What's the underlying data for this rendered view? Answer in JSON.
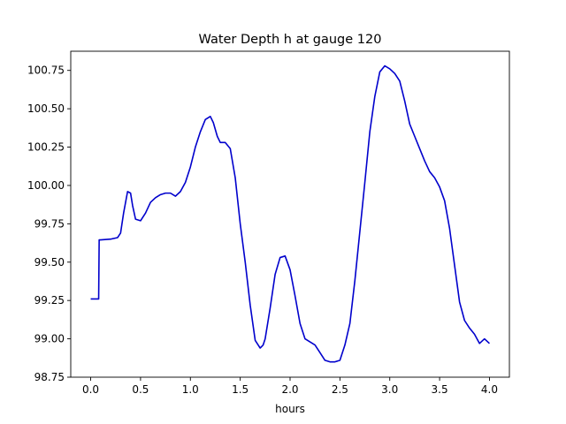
{
  "chart_data": {
    "type": "line",
    "title": "Water Depth h at gauge 120",
    "xlabel": "hours",
    "ylabel": "",
    "xlim": [
      -0.2,
      4.2
    ],
    "ylim": [
      98.75,
      100.875
    ],
    "xticks": [
      {
        "value": 0.0,
        "label": "0.0"
      },
      {
        "value": 0.5,
        "label": "0.5"
      },
      {
        "value": 1.0,
        "label": "1.0"
      },
      {
        "value": 1.5,
        "label": "1.5"
      },
      {
        "value": 2.0,
        "label": "2.0"
      },
      {
        "value": 2.5,
        "label": "2.5"
      },
      {
        "value": 3.0,
        "label": "3.0"
      },
      {
        "value": 3.5,
        "label": "3.5"
      },
      {
        "value": 4.0,
        "label": "4.0"
      }
    ],
    "yticks": [
      {
        "value": 98.75,
        "label": "98.75"
      },
      {
        "value": 99.0,
        "label": "99.00"
      },
      {
        "value": 99.25,
        "label": "99.25"
      },
      {
        "value": 99.5,
        "label": "99.50"
      },
      {
        "value": 99.75,
        "label": "99.75"
      },
      {
        "value": 100.0,
        "label": "100.00"
      },
      {
        "value": 100.25,
        "label": "100.25"
      },
      {
        "value": 100.5,
        "label": "100.50"
      },
      {
        "value": 100.75,
        "label": "100.75"
      }
    ],
    "grid": false,
    "line_color": "#0000cc",
    "series": [
      {
        "x": [
          0.0,
          0.08,
          0.085,
          0.1,
          0.2,
          0.27,
          0.3,
          0.33,
          0.37,
          0.4,
          0.42,
          0.45,
          0.5,
          0.55,
          0.6,
          0.65,
          0.7,
          0.75,
          0.8,
          0.85,
          0.9,
          0.95,
          1.0,
          1.05,
          1.1,
          1.15,
          1.2,
          1.23,
          1.27,
          1.3,
          1.35,
          1.4,
          1.45,
          1.5,
          1.55,
          1.6,
          1.65,
          1.7,
          1.73,
          1.75,
          1.8,
          1.85,
          1.9,
          1.95,
          2.0,
          2.05,
          2.1,
          2.15,
          2.2,
          2.25,
          2.3,
          2.35,
          2.4,
          2.45,
          2.5,
          2.55,
          2.6,
          2.65,
          2.7,
          2.75,
          2.8,
          2.85,
          2.9,
          2.95,
          3.0,
          3.05,
          3.1,
          3.15,
          3.2,
          3.25,
          3.3,
          3.35,
          3.4,
          3.45,
          3.5,
          3.55,
          3.6,
          3.65,
          3.7,
          3.75,
          3.8,
          3.85,
          3.9,
          3.95,
          4.0
        ],
        "y": [
          99.26,
          99.26,
          99.645,
          99.645,
          99.65,
          99.66,
          99.69,
          99.82,
          99.96,
          99.95,
          99.87,
          99.78,
          99.77,
          99.82,
          99.89,
          99.92,
          99.94,
          99.95,
          99.95,
          99.93,
          99.96,
          100.02,
          100.12,
          100.25,
          100.35,
          100.43,
          100.45,
          100.41,
          100.32,
          100.28,
          100.28,
          100.24,
          100.05,
          99.75,
          99.5,
          99.22,
          98.99,
          98.94,
          98.96,
          99.0,
          99.2,
          99.42,
          99.53,
          99.54,
          99.45,
          99.28,
          99.1,
          99.0,
          98.98,
          98.96,
          98.91,
          98.86,
          98.85,
          98.85,
          98.86,
          98.96,
          99.1,
          99.38,
          99.7,
          100.02,
          100.35,
          100.58,
          100.74,
          100.78,
          100.76,
          100.73,
          100.68,
          100.55,
          100.4,
          100.32,
          100.24,
          100.16,
          100.09,
          100.05,
          99.99,
          99.9,
          99.72,
          99.48,
          99.24,
          99.12,
          99.07,
          99.03,
          98.97,
          99.0,
          98.97
        ]
      }
    ]
  }
}
